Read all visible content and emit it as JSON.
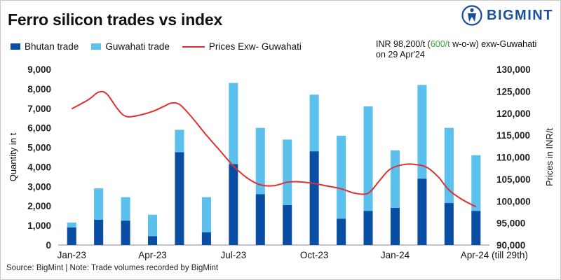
{
  "header": {
    "title": "Ferro silicon trades vs index",
    "brand": "BIGMINT"
  },
  "annotation": {
    "line1_pre": "INR 98,200/t (",
    "line1_change": "600/t",
    "line1_post": " w-o-w) exw-Guwahati",
    "line2": "on 29 Apr'24"
  },
  "footer": {
    "source": "Source: BigMint | Note: Trade volumes recorded by BigMint"
  },
  "colors": {
    "bhutan": "#0a4ea3",
    "guwahati": "#5bc0ec",
    "price": "#e03030",
    "brand": "#1a4f9c",
    "change": "#3aa43a"
  },
  "chart_data": {
    "type": "bar",
    "stacked": true,
    "categories": [
      "Jan-23",
      "Feb-23",
      "Mar-23",
      "Apr-23",
      "May-23",
      "Jun-23",
      "Jul-23",
      "Aug-23",
      "Sep-23",
      "Oct-23",
      "Nov-23",
      "Dec-23",
      "Jan-24",
      "Feb-24",
      "Mar-24",
      "Apr-24"
    ],
    "x_tick_labels": [
      {
        "index": 0,
        "label": "Jan-23"
      },
      {
        "index": 3,
        "label": "Apr-23"
      },
      {
        "index": 6,
        "label": "Jul-23"
      },
      {
        "index": 9,
        "label": "Oct-23"
      },
      {
        "index": 12,
        "label": "Jan-24"
      },
      {
        "index": 15,
        "label": "Apr-24 (till 29th)"
      }
    ],
    "series": [
      {
        "name": "Bhutan trade",
        "values": [
          900,
          1300,
          1250,
          450,
          4750,
          650,
          4150,
          2600,
          2050,
          4800,
          1350,
          1750,
          1900,
          3400,
          2150,
          1750
        ]
      },
      {
        "name": "Guwahati trade",
        "values": [
          250,
          1600,
          1200,
          1100,
          1150,
          1800,
          4150,
          3400,
          3350,
          2900,
          4250,
          5350,
          2950,
          4800,
          3850,
          2850
        ]
      }
    ],
    "line_series": {
      "name": "Prices Exw- Guwahati",
      "axis": "right",
      "points": [
        {
          "x": 0.0,
          "y": 121000
        },
        {
          "x": 0.6,
          "y": 123000
        },
        {
          "x": 1.0,
          "y": 124800
        },
        {
          "x": 1.3,
          "y": 124400
        },
        {
          "x": 1.7,
          "y": 121000
        },
        {
          "x": 2.0,
          "y": 119300
        },
        {
          "x": 2.4,
          "y": 119400
        },
        {
          "x": 3.0,
          "y": 120400
        },
        {
          "x": 3.4,
          "y": 121500
        },
        {
          "x": 3.7,
          "y": 122300
        },
        {
          "x": 4.0,
          "y": 122000
        },
        {
          "x": 4.4,
          "y": 119500
        },
        {
          "x": 5.0,
          "y": 115000
        },
        {
          "x": 5.5,
          "y": 111500
        },
        {
          "x": 6.0,
          "y": 108000
        },
        {
          "x": 6.5,
          "y": 105300
        },
        {
          "x": 7.0,
          "y": 103700
        },
        {
          "x": 7.5,
          "y": 103500
        },
        {
          "x": 8.0,
          "y": 104300
        },
        {
          "x": 8.4,
          "y": 104400
        },
        {
          "x": 9.0,
          "y": 104000
        },
        {
          "x": 9.5,
          "y": 103400
        },
        {
          "x": 10.0,
          "y": 102800
        },
        {
          "x": 10.5,
          "y": 101800
        },
        {
          "x": 11.0,
          "y": 101800
        },
        {
          "x": 11.4,
          "y": 104500
        },
        {
          "x": 11.8,
          "y": 107200
        },
        {
          "x": 12.3,
          "y": 108300
        },
        {
          "x": 12.8,
          "y": 108300
        },
        {
          "x": 13.2,
          "y": 107600
        },
        {
          "x": 13.6,
          "y": 105500
        },
        {
          "x": 14.0,
          "y": 102500
        },
        {
          "x": 14.5,
          "y": 100300
        },
        {
          "x": 15.0,
          "y": 98700
        }
      ]
    },
    "y_left": {
      "label": "Quantity in t",
      "min": 0,
      "max": 9000,
      "step": 1000,
      "ticks": [
        "0",
        "1,000",
        "2,000",
        "3,000",
        "4,000",
        "5,000",
        "6,000",
        "7,000",
        "8,000",
        "9,000"
      ]
    },
    "y_right": {
      "label": "Prices in INR/t",
      "min": 90000,
      "max": 130000,
      "step": 5000,
      "ticks": [
        "90,000",
        "95,000",
        "100,000",
        "105,000",
        "110,000",
        "115,000",
        "120,000",
        "125,000",
        "130,000"
      ]
    },
    "grid": false,
    "legend_position": "top-left"
  }
}
